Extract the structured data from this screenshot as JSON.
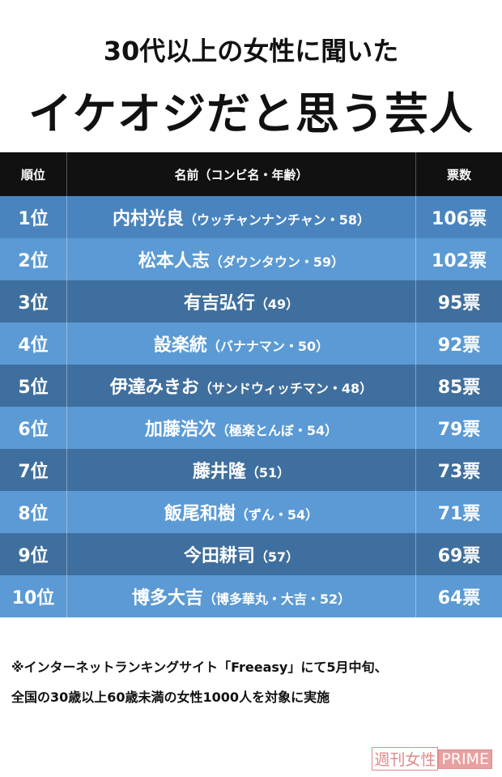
{
  "header": {
    "subtitle": "30代以上の女性に聞いた",
    "title": "イケオジだと思う芸人"
  },
  "table": {
    "columns": [
      "順位",
      "名前（コンビ名・年齢）",
      "票数"
    ],
    "rows": [
      [
        "1位",
        "内村光良",
        "（ウッチャンナンチャン・58）",
        "106票"
      ],
      [
        "2位",
        "松本人志",
        "（ダウンタウン・59）",
        "102票"
      ],
      [
        "3位",
        "有吉弘行",
        "（49）",
        "95票"
      ],
      [
        "4位",
        "設楽統",
        "（バナナマン・50）",
        "92票"
      ],
      [
        "5位",
        "伊達みきお",
        "（サンドウィッチマン・48）",
        "85票"
      ],
      [
        "6位",
        "加藤浩次",
        "（極楽とんぼ・54）",
        "79票"
      ],
      [
        "7位",
        "藤井隆",
        "（51）",
        "73票"
      ],
      [
        "8位",
        "飯尾和樹",
        "（ずん・54）",
        "71票"
      ],
      [
        "9位",
        "今田耕司",
        "（57）",
        "69票"
      ],
      [
        "10位",
        "博多大吉",
        "（博多華丸・大吉・52）",
        "64票"
      ]
    ]
  },
  "footnote": [
    "※インターネットランキングサイト「Freeasy」にて5月中旬、",
    "全国の30歳以上60歳未満の女性1000人を対象に実施"
  ],
  "watermark": {
    "brand": "週刊女性",
    "suffix": "PRIME"
  }
}
